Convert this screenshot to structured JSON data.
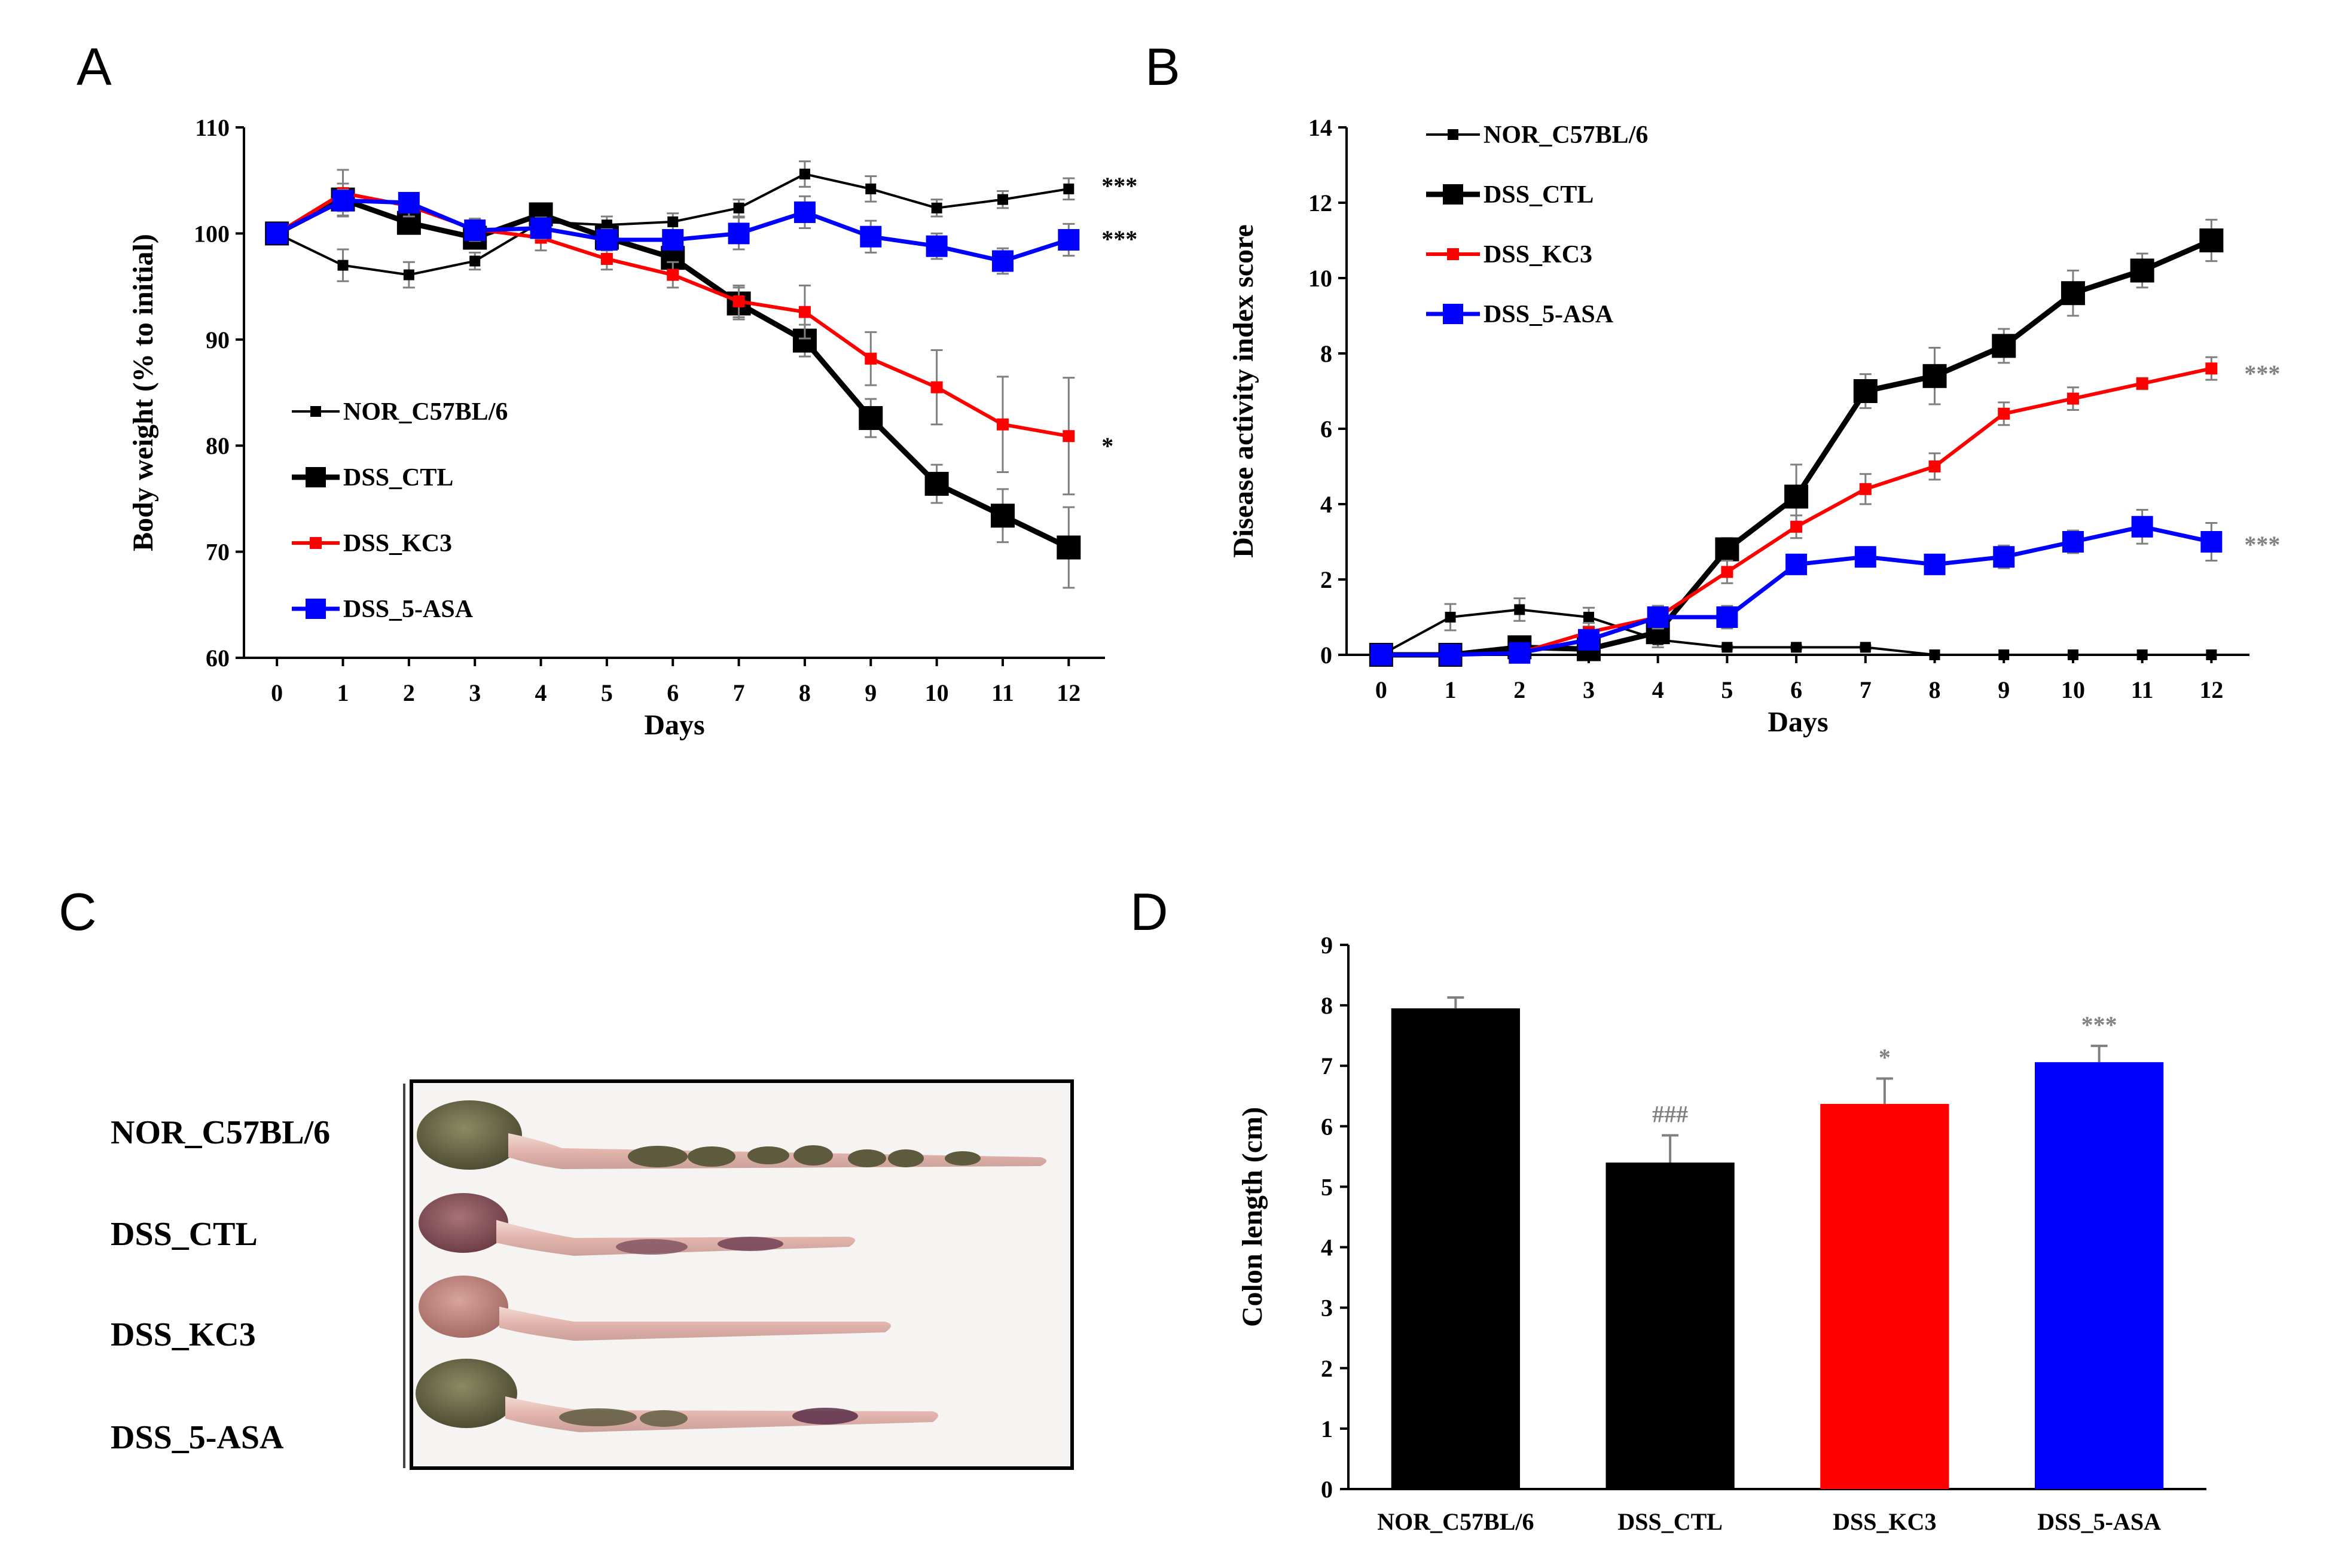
{
  "panels": {
    "A": "A",
    "B": "B",
    "C": "C",
    "D": "D"
  },
  "colors": {
    "nor": "#000000",
    "ctl": "#000000",
    "kc3": "#ff0000",
    "asa": "#0000ff",
    "error": "#7f7f7f",
    "sig_gray": "#808080"
  },
  "chart_data": [
    {
      "id": "A",
      "type": "line",
      "xlabel": "Days",
      "ylabel": "Body weight (% to initial)",
      "x": [
        0,
        1,
        2,
        3,
        4,
        5,
        6,
        7,
        8,
        9,
        10,
        11,
        12
      ],
      "ylim": [
        60,
        110
      ],
      "yticks": [
        60,
        70,
        80,
        90,
        100,
        110
      ],
      "legend_position": "center-left",
      "series": [
        {
          "name": "NOR_C57BL/6",
          "values": [
            100,
            97,
            96.1,
            97.4,
            101.1,
            100.8,
            101.1,
            102.4,
            105.6,
            104.2,
            102.4,
            103.2,
            104.2
          ],
          "errors": [
            0,
            1.5,
            1.2,
            0.8,
            1.2,
            0.8,
            0.8,
            0.8,
            1.2,
            1.2,
            0.8,
            0.8,
            1.0
          ],
          "sig": "***"
        },
        {
          "name": "DSS_CTL",
          "values": [
            100,
            103.2,
            101,
            99.6,
            101.8,
            99.6,
            97.7,
            93.4,
            89.9,
            82.6,
            76.4,
            73.4,
            70.4
          ],
          "errors": [
            0,
            1.5,
            1.0,
            0.8,
            1.0,
            0.8,
            1.2,
            1.5,
            1.5,
            1.8,
            1.8,
            2.5,
            3.8
          ],
          "sig": ""
        },
        {
          "name": "DSS_KC3",
          "values": [
            100,
            103.8,
            102.6,
            100.4,
            99.6,
            97.6,
            96.1,
            93.6,
            92.6,
            88.2,
            85.5,
            82.0,
            80.9
          ],
          "errors": [
            0,
            2.2,
            1.0,
            1.0,
            1.2,
            1.0,
            1.2,
            1.5,
            2.5,
            2.5,
            3.5,
            4.5,
            5.5
          ],
          "sig": "*"
        },
        {
          "name": "DSS_5-ASA",
          "values": [
            100,
            103.1,
            102.9,
            100.3,
            100.5,
            99.4,
            99.4,
            100,
            102,
            99.7,
            98.8,
            97.4,
            99.4
          ],
          "errors": [
            0,
            1.0,
            0.8,
            1.0,
            1.0,
            1.0,
            0.8,
            1.5,
            1.5,
            1.5,
            1.2,
            1.2,
            1.5
          ],
          "sig": "***"
        }
      ]
    },
    {
      "id": "B",
      "type": "line",
      "xlabel": "Days",
      "ylabel": "Disease activity index score",
      "x": [
        0,
        1,
        2,
        3,
        4,
        5,
        6,
        7,
        8,
        9,
        10,
        11,
        12
      ],
      "ylim": [
        0,
        14
      ],
      "yticks": [
        0,
        2,
        4,
        6,
        8,
        10,
        12,
        14
      ],
      "legend_position": "top-left",
      "series": [
        {
          "name": "NOR_C57BL/6",
          "values": [
            0,
            1.0,
            1.2,
            1.0,
            0.4,
            0.2,
            0.2,
            0.2,
            0,
            0,
            0,
            0,
            0
          ],
          "errors": [
            0,
            0.35,
            0.3,
            0.25,
            0.2,
            0.05,
            0.05,
            0.05,
            0,
            0,
            0,
            0,
            0
          ],
          "sig": ""
        },
        {
          "name": "DSS_CTL",
          "values": [
            0,
            0,
            0.2,
            0.15,
            0.6,
            2.8,
            4.2,
            7.0,
            7.4,
            8.2,
            9.6,
            10.2,
            11.0
          ],
          "errors": [
            0,
            0.05,
            0.2,
            0.15,
            0.3,
            0.3,
            0.85,
            0.45,
            0.75,
            0.45,
            0.6,
            0.45,
            0.55
          ],
          "sig": ""
        },
        {
          "name": "DSS_KC3",
          "values": [
            0,
            0,
            0.05,
            0.6,
            1.0,
            2.2,
            3.4,
            4.4,
            5.0,
            6.4,
            6.8,
            7.2,
            7.6
          ],
          "errors": [
            0,
            0,
            0.05,
            0.25,
            0.3,
            0.3,
            0.3,
            0.4,
            0.35,
            0.3,
            0.3,
            0.15,
            0.3
          ],
          "sig": "***"
        },
        {
          "name": "DSS_5-ASA",
          "values": [
            0,
            0,
            0.05,
            0.4,
            1.0,
            1.0,
            2.4,
            2.6,
            2.4,
            2.6,
            3.0,
            3.4,
            3.0
          ],
          "errors": [
            0,
            0,
            0.05,
            0.2,
            0.3,
            0.3,
            0.2,
            0.2,
            0.2,
            0.3,
            0.3,
            0.45,
            0.5
          ],
          "sig": "***"
        }
      ]
    },
    {
      "id": "D",
      "type": "bar",
      "xlabel": "",
      "ylabel": "Colon length (cm)",
      "categories": [
        "NOR_C57BL/6",
        "DSS_CTL",
        "DSS_KC3",
        "DSS_5-ASA"
      ],
      "values": [
        7.95,
        5.4,
        6.37,
        7.06
      ],
      "errors": [
        0.18,
        0.45,
        0.42,
        0.27
      ],
      "sig": [
        "",
        "###",
        "*",
        "***"
      ],
      "ylim": [
        0,
        9
      ],
      "yticks": [
        0,
        1,
        2,
        3,
        4,
        5,
        6,
        7,
        8,
        9
      ]
    }
  ],
  "photo": {
    "labels": [
      "NOR_C57BL/6",
      "DSS_CTL",
      "DSS_KC3",
      "DSS_5-ASA"
    ]
  }
}
